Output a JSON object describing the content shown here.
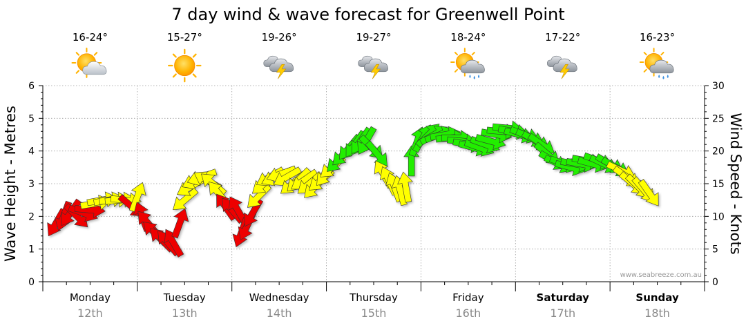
{
  "chart_data": {
    "type": "scatter",
    "title": "7 day wind & wave forecast for Greenwell Point",
    "ylabel_left": "Wave Height - Metres",
    "ylabel_right": "Wind Speed - Knots",
    "ylim_left": [
      0,
      6
    ],
    "ylim_right": [
      0,
      30
    ],
    "yticks_left": [
      "0",
      "1",
      "2",
      "3",
      "4",
      "5",
      "6"
    ],
    "yticks_right": [
      "0",
      "5",
      "10",
      "15",
      "20",
      "25",
      "30"
    ],
    "days": [
      {
        "name": "Monday",
        "date": "12th",
        "temp": "16-24°",
        "icon": "partly-cloudy-icon",
        "bold": false
      },
      {
        "name": "Tuesday",
        "date": "13th",
        "temp": "15-27°",
        "icon": "sunny-icon",
        "bold": false
      },
      {
        "name": "Wednesday",
        "date": "14th",
        "temp": "19-26°",
        "icon": "thunderstorm-icon",
        "bold": false
      },
      {
        "name": "Thursday",
        "date": "15th",
        "temp": "19-27°",
        "icon": "thunderstorm-icon",
        "bold": false
      },
      {
        "name": "Friday",
        "date": "16th",
        "temp": "18-24°",
        "icon": "sun-showers-icon",
        "bold": false
      },
      {
        "name": "Saturday",
        "date": "17th",
        "temp": "17-22°",
        "icon": "thunderstorm-icon",
        "bold": true
      },
      {
        "name": "Sunday",
        "date": "18th",
        "temp": "16-23°",
        "icon": "sun-showers-icon",
        "bold": true
      }
    ],
    "credit": "www.seabreeze.com.au",
    "wind_color_legend": {
      "low": "#ff0000",
      "medium": "#ffff00",
      "high": "#00ee00"
    },
    "wind_series": [
      {
        "t": 0.14,
        "knots": 9.0,
        "dir": 210,
        "color": "red"
      },
      {
        "t": 0.22,
        "knots": 10.0,
        "dir": 200,
        "color": "red"
      },
      {
        "t": 0.29,
        "knots": 10.5,
        "dir": 215,
        "color": "red"
      },
      {
        "t": 0.36,
        "knots": 10.0,
        "dir": 135,
        "color": "red"
      },
      {
        "t": 0.43,
        "knots": 10.5,
        "dir": 110,
        "color": "red"
      },
      {
        "t": 0.5,
        "knots": 11.0,
        "dir": 95,
        "color": "red"
      },
      {
        "t": 0.56,
        "knots": 12.0,
        "dir": 80,
        "color": "yellow"
      },
      {
        "t": 0.63,
        "knots": 12.5,
        "dir": 80,
        "color": "yellow"
      },
      {
        "t": 0.7,
        "knots": 12.5,
        "dir": 80,
        "color": "yellow"
      },
      {
        "t": 0.76,
        "knots": 12.5,
        "dir": 85,
        "color": "yellow"
      },
      {
        "t": 0.82,
        "knots": 12.5,
        "dir": 85,
        "color": "yellow"
      },
      {
        "t": 0.88,
        "knots": 12.5,
        "dir": 95,
        "color": "yellow"
      },
      {
        "t": 0.94,
        "knots": 11.5,
        "dir": 130,
        "color": "red"
      },
      {
        "t": 1.0,
        "knots": 13.0,
        "dir": 20,
        "color": "yellow"
      },
      {
        "t": 1.05,
        "knots": 10.0,
        "dir": 340,
        "color": "red"
      },
      {
        "t": 1.11,
        "knots": 9.0,
        "dir": 320,
        "color": "red"
      },
      {
        "t": 1.18,
        "knots": 7.5,
        "dir": 315,
        "color": "red"
      },
      {
        "t": 1.25,
        "knots": 6.5,
        "dir": 315,
        "color": "red"
      },
      {
        "t": 1.32,
        "knots": 6.0,
        "dir": 320,
        "color": "red"
      },
      {
        "t": 1.38,
        "knots": 6.0,
        "dir": 330,
        "color": "red"
      },
      {
        "t": 1.45,
        "knots": 9.0,
        "dir": 20,
        "color": "red"
      },
      {
        "t": 1.5,
        "knots": 12.5,
        "dir": 230,
        "color": "yellow"
      },
      {
        "t": 1.56,
        "knots": 14.5,
        "dir": 240,
        "color": "yellow"
      },
      {
        "t": 1.62,
        "knots": 15.5,
        "dir": 245,
        "color": "yellow"
      },
      {
        "t": 1.68,
        "knots": 16.0,
        "dir": 250,
        "color": "yellow"
      },
      {
        "t": 1.74,
        "knots": 15.5,
        "dir": 300,
        "color": "yellow"
      },
      {
        "t": 1.8,
        "knots": 15.0,
        "dir": 310,
        "color": "yellow"
      },
      {
        "t": 1.86,
        "knots": 13.5,
        "dir": 320,
        "color": "yellow"
      },
      {
        "t": 1.93,
        "knots": 11.5,
        "dir": 325,
        "color": "red"
      },
      {
        "t": 2.0,
        "knots": 11.0,
        "dir": 320,
        "color": "red"
      },
      {
        "t": 2.06,
        "knots": 11.0,
        "dir": 330,
        "color": "red"
      },
      {
        "t": 2.1,
        "knots": 7.5,
        "dir": 200,
        "color": "red"
      },
      {
        "t": 2.16,
        "knots": 8.5,
        "dir": 205,
        "color": "red"
      },
      {
        "t": 2.22,
        "knots": 10.5,
        "dir": 210,
        "color": "red"
      },
      {
        "t": 2.28,
        "knots": 13.0,
        "dir": 225,
        "color": "yellow"
      },
      {
        "t": 2.34,
        "knots": 15.0,
        "dir": 230,
        "color": "yellow"
      },
      {
        "t": 2.4,
        "knots": 16.0,
        "dir": 240,
        "color": "yellow"
      },
      {
        "t": 2.46,
        "knots": 16.0,
        "dir": 245,
        "color": "yellow"
      },
      {
        "t": 2.52,
        "knots": 16.5,
        "dir": 250,
        "color": "yellow"
      },
      {
        "t": 2.58,
        "knots": 16.0,
        "dir": 240,
        "color": "yellow"
      },
      {
        "t": 2.64,
        "knots": 15.0,
        "dir": 230,
        "color": "yellow"
      },
      {
        "t": 2.7,
        "knots": 15.5,
        "dir": 225,
        "color": "yellow"
      },
      {
        "t": 2.76,
        "knots": 15.5,
        "dir": 235,
        "color": "yellow"
      },
      {
        "t": 2.82,
        "knots": 15.0,
        "dir": 230,
        "color": "yellow"
      },
      {
        "t": 2.88,
        "knots": 14.5,
        "dir": 225,
        "color": "yellow"
      },
      {
        "t": 2.94,
        "knots": 15.5,
        "dir": 230,
        "color": "yellow"
      },
      {
        "t": 3.0,
        "knots": 16.5,
        "dir": 220,
        "color": "yellow"
      },
      {
        "t": 3.06,
        "knots": 17.5,
        "dir": 230,
        "color": "yellow"
      },
      {
        "t": 3.12,
        "knots": 18.5,
        "dir": 225,
        "color": "green"
      },
      {
        "t": 3.18,
        "knots": 19.5,
        "dir": 225,
        "color": "green"
      },
      {
        "t": 3.24,
        "knots": 20.5,
        "dir": 220,
        "color": "green"
      },
      {
        "t": 3.3,
        "knots": 21.0,
        "dir": 215,
        "color": "green"
      },
      {
        "t": 3.36,
        "knots": 21.5,
        "dir": 215,
        "color": "green"
      },
      {
        "t": 3.42,
        "knots": 21.5,
        "dir": 210,
        "color": "green"
      },
      {
        "t": 3.48,
        "knots": 20.5,
        "dir": 135,
        "color": "green"
      },
      {
        "t": 3.54,
        "knots": 19.5,
        "dir": 140,
        "color": "green"
      },
      {
        "t": 3.6,
        "knots": 16.5,
        "dir": 330,
        "color": "yellow"
      },
      {
        "t": 3.66,
        "knots": 15.5,
        "dir": 335,
        "color": "yellow"
      },
      {
        "t": 3.72,
        "knots": 14.5,
        "dir": 340,
        "color": "yellow"
      },
      {
        "t": 3.78,
        "knots": 14.0,
        "dir": 345,
        "color": "yellow"
      },
      {
        "t": 3.84,
        "knots": 14.5,
        "dir": 350,
        "color": "yellow"
      },
      {
        "t": 3.9,
        "knots": 18.5,
        "dir": 0,
        "color": "green"
      },
      {
        "t": 3.96,
        "knots": 21.5,
        "dir": 20,
        "color": "green"
      },
      {
        "t": 4.02,
        "knots": 22.0,
        "dir": 30,
        "color": "green"
      },
      {
        "t": 4.08,
        "knots": 22.5,
        "dir": 45,
        "color": "green"
      },
      {
        "t": 4.14,
        "knots": 22.5,
        "dir": 60,
        "color": "green"
      },
      {
        "t": 4.2,
        "knots": 22.5,
        "dir": 70,
        "color": "green"
      },
      {
        "t": 4.26,
        "knots": 22.5,
        "dir": 80,
        "color": "green"
      },
      {
        "t": 4.32,
        "knots": 22.0,
        "dir": 85,
        "color": "green"
      },
      {
        "t": 4.38,
        "knots": 22.0,
        "dir": 90,
        "color": "green"
      },
      {
        "t": 4.44,
        "knots": 21.5,
        "dir": 95,
        "color": "green"
      },
      {
        "t": 4.5,
        "knots": 21.0,
        "dir": 100,
        "color": "green"
      },
      {
        "t": 4.56,
        "knots": 20.5,
        "dir": 105,
        "color": "green"
      },
      {
        "t": 4.62,
        "knots": 20.5,
        "dir": 110,
        "color": "green"
      },
      {
        "t": 4.68,
        "knots": 21.0,
        "dir": 110,
        "color": "green"
      },
      {
        "t": 4.74,
        "knots": 21.5,
        "dir": 105,
        "color": "green"
      },
      {
        "t": 4.8,
        "knots": 22.5,
        "dir": 100,
        "color": "green"
      },
      {
        "t": 4.86,
        "knots": 23.0,
        "dir": 95,
        "color": "green"
      },
      {
        "t": 4.92,
        "knots": 23.5,
        "dir": 95,
        "color": "green"
      },
      {
        "t": 4.98,
        "knots": 23.0,
        "dir": 100,
        "color": "green"
      },
      {
        "t": 5.04,
        "knots": 22.5,
        "dir": 105,
        "color": "green"
      },
      {
        "t": 5.1,
        "knots": 22.5,
        "dir": 110,
        "color": "green"
      },
      {
        "t": 5.16,
        "knots": 22.0,
        "dir": 115,
        "color": "green"
      },
      {
        "t": 5.22,
        "knots": 21.5,
        "dir": 120,
        "color": "green"
      },
      {
        "t": 5.28,
        "knots": 21.0,
        "dir": 125,
        "color": "green"
      },
      {
        "t": 5.34,
        "knots": 19.5,
        "dir": 130,
        "color": "green"
      },
      {
        "t": 5.4,
        "knots": 18.5,
        "dir": 120,
        "color": "green"
      },
      {
        "t": 5.46,
        "knots": 18.0,
        "dir": 115,
        "color": "green"
      },
      {
        "t": 5.52,
        "knots": 18.0,
        "dir": 110,
        "color": "green"
      },
      {
        "t": 5.58,
        "knots": 17.5,
        "dir": 105,
        "color": "green"
      },
      {
        "t": 5.64,
        "knots": 18.0,
        "dir": 100,
        "color": "green"
      },
      {
        "t": 5.7,
        "knots": 18.0,
        "dir": 100,
        "color": "green"
      },
      {
        "t": 5.76,
        "knots": 18.5,
        "dir": 100,
        "color": "green"
      },
      {
        "t": 5.82,
        "knots": 18.0,
        "dir": 105,
        "color": "green"
      },
      {
        "t": 5.88,
        "knots": 18.5,
        "dir": 110,
        "color": "green"
      },
      {
        "t": 5.94,
        "knots": 18.0,
        "dir": 115,
        "color": "green"
      },
      {
        "t": 6.0,
        "knots": 18.0,
        "dir": 120,
        "color": "green"
      },
      {
        "t": 6.06,
        "knots": 17.5,
        "dir": 120,
        "color": "green"
      },
      {
        "t": 6.12,
        "knots": 17.0,
        "dir": 115,
        "color": "yellow"
      },
      {
        "t": 6.18,
        "knots": 16.0,
        "dir": 125,
        "color": "yellow"
      },
      {
        "t": 6.24,
        "knots": 15.0,
        "dir": 130,
        "color": "yellow"
      },
      {
        "t": 6.3,
        "knots": 14.5,
        "dir": 135,
        "color": "yellow"
      },
      {
        "t": 6.36,
        "knots": 14.0,
        "dir": 140,
        "color": "yellow"
      },
      {
        "t": 6.42,
        "knots": 13.5,
        "dir": 145,
        "color": "yellow"
      }
    ]
  }
}
